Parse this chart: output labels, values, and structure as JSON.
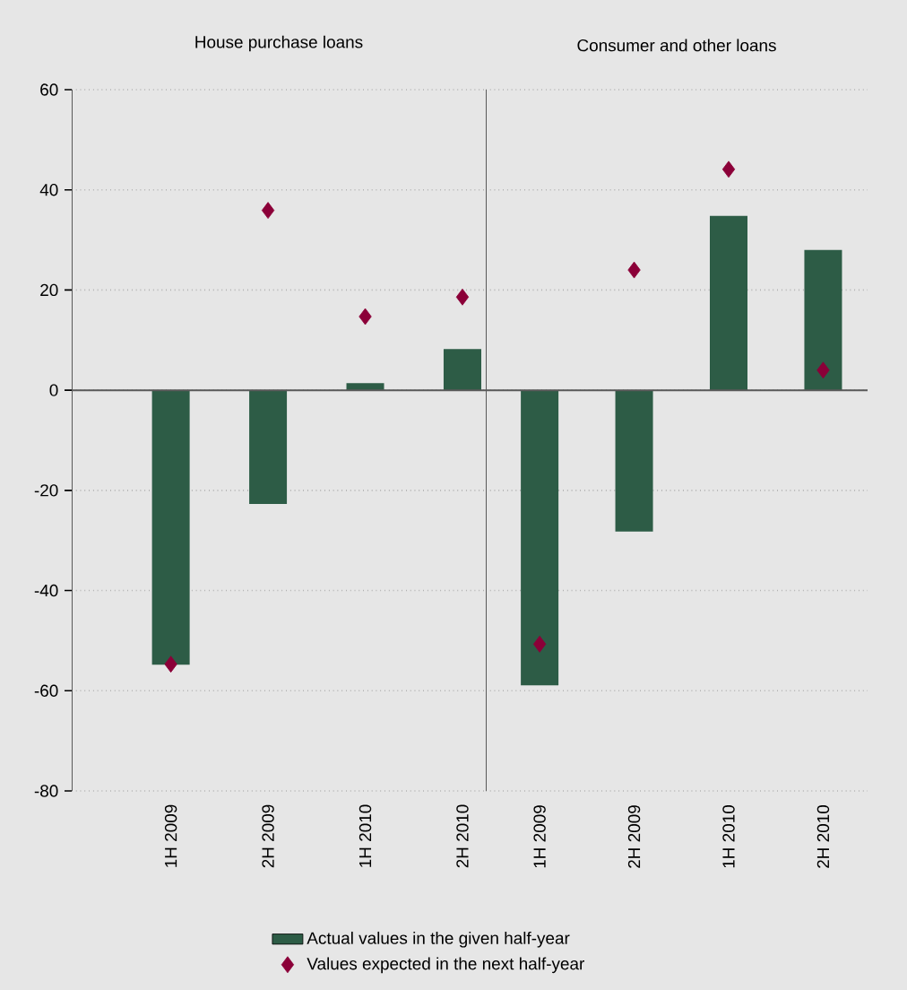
{
  "chart_data": [
    {
      "type": "bar",
      "title": "House purchase loans",
      "categories": [
        "1H 2009",
        "2H 2009",
        "1H 2010",
        "2H 2010"
      ],
      "series": [
        {
          "name": "Actual values in the given half-year",
          "color": "#2d5c46",
          "values": [
            -54.8,
            -22.7,
            1.4,
            8.2
          ]
        },
        {
          "name": "Values expected in the next half-year",
          "type": "scatter",
          "marker": "diamond",
          "color": "#8b0038",
          "values": [
            -54.7,
            35.9,
            14.7,
            18.6
          ]
        }
      ],
      "ylim": [
        -80,
        60
      ],
      "yticks": [
        -80,
        -60,
        -40,
        -20,
        0,
        20,
        40,
        60
      ],
      "grid": "y",
      "legend": "bottom"
    },
    {
      "type": "bar",
      "title": "Consumer and other loans",
      "categories": [
        "1H 2009",
        "2H 2009",
        "1H 2010",
        "2H 2010"
      ],
      "series": [
        {
          "color": "#2d5c46",
          "values": [
            -58.9,
            -28.2,
            34.8,
            28.0
          ]
        },
        {
          "type": "scatter",
          "marker": "diamond",
          "color": "#8b0038",
          "values": [
            -50.7,
            24.0,
            44.1,
            4.0
          ]
        }
      ],
      "ylim": [
        -80,
        60
      ],
      "yticks": [
        -80,
        -60,
        -40,
        -20,
        0,
        20,
        40,
        60
      ],
      "grid": "y",
      "tick_labels": "x"
    }
  ]
}
